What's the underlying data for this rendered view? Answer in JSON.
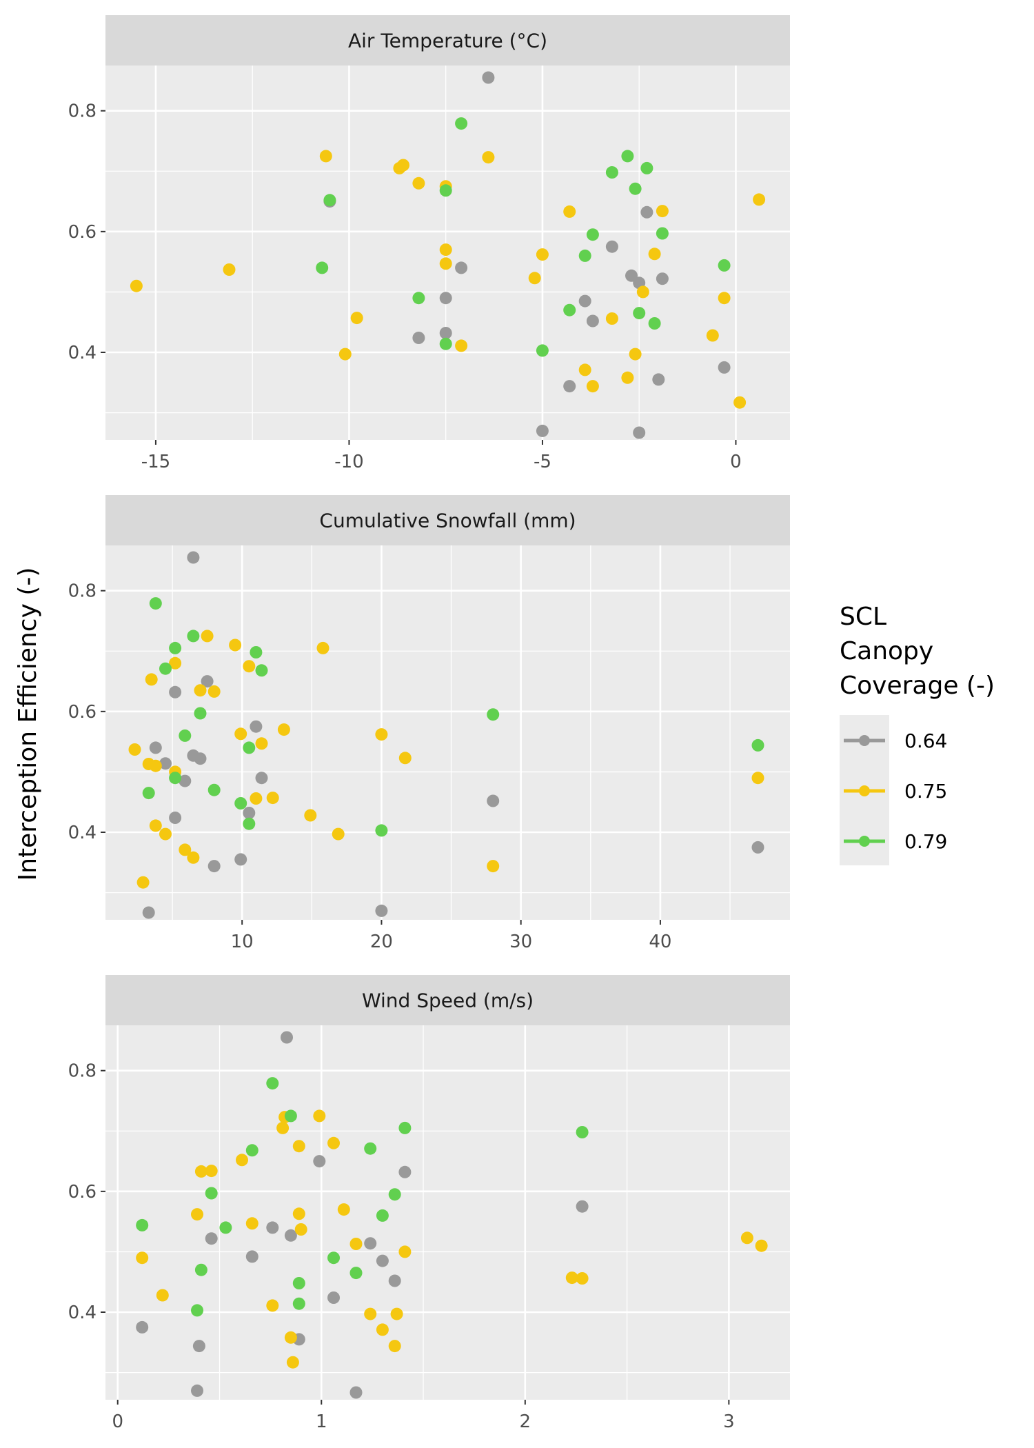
{
  "chart_data": {
    "type": "scatter",
    "ylabel": "Interception Efficiency (-)",
    "ylim": [
      0.255,
      0.875
    ],
    "y_ticks": [
      0.4,
      0.6,
      0.8
    ],
    "y_tick_labels": [
      "0.4",
      "0.6",
      "0.8"
    ],
    "legend": {
      "title_lines": [
        "SCL",
        "Canopy",
        "Coverage (-)"
      ],
      "placement": "right",
      "items": [
        {
          "label": "0.64",
          "color": "#999999"
        },
        {
          "label": "0.75",
          "color": "#F5C710"
        },
        {
          "label": "0.79",
          "color": "#61D04F"
        }
      ]
    },
    "panels": [
      {
        "title": "Air Temperature (°C)",
        "xlim": [
          -16.3,
          1.4
        ],
        "x_ticks": [
          -15,
          -10,
          -5,
          0
        ],
        "x_tick_labels": [
          "-15",
          "-10",
          "-5",
          "0"
        ],
        "points": [
          {
            "x": -6.4,
            "y": 0.855,
            "g": 0
          },
          {
            "x": -10.5,
            "y": 0.65,
            "g": 0
          },
          {
            "x": -7.1,
            "y": 0.54,
            "g": 0
          },
          {
            "x": -7.5,
            "y": 0.49,
            "g": 0
          },
          {
            "x": -8.2,
            "y": 0.424,
            "g": 0
          },
          {
            "x": -7.5,
            "y": 0.432,
            "g": 0
          },
          {
            "x": -3.2,
            "y": 0.575,
            "g": 0
          },
          {
            "x": -2.3,
            "y": 0.632,
            "g": 0
          },
          {
            "x": -2.7,
            "y": 0.527,
            "g": 0
          },
          {
            "x": -2.5,
            "y": 0.515,
            "g": 0
          },
          {
            "x": -1.9,
            "y": 0.522,
            "g": 0
          },
          {
            "x": -3.9,
            "y": 0.485,
            "g": 0
          },
          {
            "x": -3.7,
            "y": 0.452,
            "g": 0
          },
          {
            "x": -4.3,
            "y": 0.344,
            "g": 0
          },
          {
            "x": -2.0,
            "y": 0.355,
            "g": 0
          },
          {
            "x": -0.3,
            "y": 0.375,
            "g": 0
          },
          {
            "x": -5.0,
            "y": 0.27,
            "g": 0
          },
          {
            "x": -2.5,
            "y": 0.267,
            "g": 0
          },
          {
            "x": -15.5,
            "y": 0.51,
            "g": 1
          },
          {
            "x": -13.1,
            "y": 0.537,
            "g": 1
          },
          {
            "x": -10.6,
            "y": 0.725,
            "g": 1
          },
          {
            "x": -8.7,
            "y": 0.705,
            "g": 1
          },
          {
            "x": -8.6,
            "y": 0.71,
            "g": 1
          },
          {
            "x": -8.2,
            "y": 0.68,
            "g": 1
          },
          {
            "x": -7.5,
            "y": 0.675,
            "g": 1
          },
          {
            "x": -6.4,
            "y": 0.723,
            "g": 1
          },
          {
            "x": -7.5,
            "y": 0.57,
            "g": 1
          },
          {
            "x": -7.5,
            "y": 0.547,
            "g": 1
          },
          {
            "x": -9.8,
            "y": 0.457,
            "g": 1
          },
          {
            "x": -10.1,
            "y": 0.397,
            "g": 1
          },
          {
            "x": -7.1,
            "y": 0.411,
            "g": 1
          },
          {
            "x": -5.0,
            "y": 0.562,
            "g": 1
          },
          {
            "x": -5.2,
            "y": 0.523,
            "g": 1
          },
          {
            "x": -4.3,
            "y": 0.633,
            "g": 1
          },
          {
            "x": -3.2,
            "y": 0.456,
            "g": 1
          },
          {
            "x": -3.9,
            "y": 0.371,
            "g": 1
          },
          {
            "x": -3.7,
            "y": 0.344,
            "g": 1
          },
          {
            "x": -2.8,
            "y": 0.358,
            "g": 1
          },
          {
            "x": -2.6,
            "y": 0.397,
            "g": 1
          },
          {
            "x": -2.4,
            "y": 0.5,
            "g": 1
          },
          {
            "x": -2.1,
            "y": 0.563,
            "g": 1
          },
          {
            "x": -1.9,
            "y": 0.634,
            "g": 1
          },
          {
            "x": -0.6,
            "y": 0.428,
            "g": 1
          },
          {
            "x": -0.3,
            "y": 0.49,
            "g": 1
          },
          {
            "x": 0.1,
            "y": 0.317,
            "g": 1
          },
          {
            "x": 0.6,
            "y": 0.653,
            "g": 1
          },
          {
            "x": -10.5,
            "y": 0.652,
            "g": 2
          },
          {
            "x": -10.7,
            "y": 0.54,
            "g": 2
          },
          {
            "x": -8.2,
            "y": 0.49,
            "g": 2
          },
          {
            "x": -7.5,
            "y": 0.668,
            "g": 2
          },
          {
            "x": -7.5,
            "y": 0.414,
            "g": 2
          },
          {
            "x": -7.1,
            "y": 0.779,
            "g": 2
          },
          {
            "x": -5.0,
            "y": 0.403,
            "g": 2
          },
          {
            "x": -4.3,
            "y": 0.47,
            "g": 2
          },
          {
            "x": -3.9,
            "y": 0.56,
            "g": 2
          },
          {
            "x": -3.7,
            "y": 0.595,
            "g": 2
          },
          {
            "x": -3.2,
            "y": 0.698,
            "g": 2
          },
          {
            "x": -2.8,
            "y": 0.725,
            "g": 2
          },
          {
            "x": -2.6,
            "y": 0.671,
            "g": 2
          },
          {
            "x": -2.5,
            "y": 0.465,
            "g": 2
          },
          {
            "x": -2.3,
            "y": 0.705,
            "g": 2
          },
          {
            "x": -2.1,
            "y": 0.448,
            "g": 2
          },
          {
            "x": -1.9,
            "y": 0.597,
            "g": 2
          },
          {
            "x": -0.3,
            "y": 0.544,
            "g": 2
          }
        ]
      },
      {
        "title": "Cumulative Snowfall (mm)",
        "xlim": [
          0.2,
          49.3
        ],
        "x_ticks": [
          10,
          20,
          30,
          40
        ],
        "x_tick_labels": [
          "10",
          "20",
          "30",
          "40"
        ],
        "points": [
          {
            "x": 6.5,
            "y": 0.855,
            "g": 0
          },
          {
            "x": 7.5,
            "y": 0.65,
            "g": 0
          },
          {
            "x": 5.2,
            "y": 0.632,
            "g": 0
          },
          {
            "x": 11.0,
            "y": 0.575,
            "g": 0
          },
          {
            "x": 3.8,
            "y": 0.54,
            "g": 0
          },
          {
            "x": 6.5,
            "y": 0.527,
            "g": 0
          },
          {
            "x": 4.5,
            "y": 0.514,
            "g": 0
          },
          {
            "x": 7.0,
            "y": 0.522,
            "g": 0
          },
          {
            "x": 5.9,
            "y": 0.485,
            "g": 0
          },
          {
            "x": 11.4,
            "y": 0.49,
            "g": 0
          },
          {
            "x": 5.2,
            "y": 0.424,
            "g": 0
          },
          {
            "x": 10.5,
            "y": 0.432,
            "g": 0
          },
          {
            "x": 28.0,
            "y": 0.452,
            "g": 0
          },
          {
            "x": 8.0,
            "y": 0.344,
            "g": 0
          },
          {
            "x": 9.9,
            "y": 0.355,
            "g": 0
          },
          {
            "x": 47.0,
            "y": 0.375,
            "g": 0
          },
          {
            "x": 3.3,
            "y": 0.267,
            "g": 0
          },
          {
            "x": 20.0,
            "y": 0.27,
            "g": 0
          },
          {
            "x": 7.5,
            "y": 0.725,
            "g": 1
          },
          {
            "x": 9.5,
            "y": 0.71,
            "g": 1
          },
          {
            "x": 15.8,
            "y": 0.705,
            "g": 1
          },
          {
            "x": 5.2,
            "y": 0.68,
            "g": 1
          },
          {
            "x": 10.5,
            "y": 0.675,
            "g": 1
          },
          {
            "x": 3.5,
            "y": 0.653,
            "g": 1
          },
          {
            "x": 7.0,
            "y": 0.635,
            "g": 1
          },
          {
            "x": 8.0,
            "y": 0.633,
            "g": 1
          },
          {
            "x": 9.9,
            "y": 0.563,
            "g": 1
          },
          {
            "x": 13.0,
            "y": 0.57,
            "g": 1
          },
          {
            "x": 20.0,
            "y": 0.562,
            "g": 1
          },
          {
            "x": 2.3,
            "y": 0.537,
            "g": 1
          },
          {
            "x": 11.4,
            "y": 0.547,
            "g": 1
          },
          {
            "x": 21.7,
            "y": 0.523,
            "g": 1
          },
          {
            "x": 3.3,
            "y": 0.513,
            "g": 1
          },
          {
            "x": 3.8,
            "y": 0.51,
            "g": 1
          },
          {
            "x": 5.2,
            "y": 0.5,
            "g": 1
          },
          {
            "x": 47.0,
            "y": 0.49,
            "g": 1
          },
          {
            "x": 11.0,
            "y": 0.456,
            "g": 1
          },
          {
            "x": 12.2,
            "y": 0.457,
            "g": 1
          },
          {
            "x": 14.9,
            "y": 0.428,
            "g": 1
          },
          {
            "x": 3.8,
            "y": 0.411,
            "g": 1
          },
          {
            "x": 4.5,
            "y": 0.397,
            "g": 1
          },
          {
            "x": 16.9,
            "y": 0.397,
            "g": 1
          },
          {
            "x": 5.9,
            "y": 0.371,
            "g": 1
          },
          {
            "x": 6.5,
            "y": 0.358,
            "g": 1
          },
          {
            "x": 28.0,
            "y": 0.344,
            "g": 1
          },
          {
            "x": 2.9,
            "y": 0.317,
            "g": 1
          },
          {
            "x": 3.8,
            "y": 0.779,
            "g": 2
          },
          {
            "x": 6.5,
            "y": 0.725,
            "g": 2
          },
          {
            "x": 5.2,
            "y": 0.705,
            "g": 2
          },
          {
            "x": 11.0,
            "y": 0.698,
            "g": 2
          },
          {
            "x": 4.5,
            "y": 0.671,
            "g": 2
          },
          {
            "x": 11.4,
            "y": 0.668,
            "g": 2
          },
          {
            "x": 7.0,
            "y": 0.597,
            "g": 2
          },
          {
            "x": 28.0,
            "y": 0.595,
            "g": 2
          },
          {
            "x": 5.9,
            "y": 0.56,
            "g": 2
          },
          {
            "x": 10.5,
            "y": 0.54,
            "g": 2
          },
          {
            "x": 47.0,
            "y": 0.544,
            "g": 2
          },
          {
            "x": 5.2,
            "y": 0.49,
            "g": 2
          },
          {
            "x": 8.0,
            "y": 0.47,
            "g": 2
          },
          {
            "x": 3.3,
            "y": 0.465,
            "g": 2
          },
          {
            "x": 9.9,
            "y": 0.448,
            "g": 2
          },
          {
            "x": 10.5,
            "y": 0.414,
            "g": 2
          },
          {
            "x": 20.0,
            "y": 0.403,
            "g": 2
          }
        ]
      },
      {
        "title": "Wind Speed (m/s)",
        "xlim": [
          -0.06,
          3.3
        ],
        "x_ticks": [
          0,
          1,
          2,
          3
        ],
        "x_tick_labels": [
          "0",
          "1",
          "2",
          "3"
        ],
        "points": [
          {
            "x": 0.83,
            "y": 0.855,
            "g": 0
          },
          {
            "x": 0.99,
            "y": 0.65,
            "g": 0
          },
          {
            "x": 1.41,
            "y": 0.632,
            "g": 0
          },
          {
            "x": 2.28,
            "y": 0.575,
            "g": 0
          },
          {
            "x": 0.76,
            "y": 0.54,
            "g": 0
          },
          {
            "x": 0.85,
            "y": 0.527,
            "g": 0
          },
          {
            "x": 0.46,
            "y": 0.522,
            "g": 0
          },
          {
            "x": 1.24,
            "y": 0.514,
            "g": 0
          },
          {
            "x": 0.66,
            "y": 0.492,
            "g": 0
          },
          {
            "x": 1.3,
            "y": 0.485,
            "g": 0
          },
          {
            "x": 1.36,
            "y": 0.452,
            "g": 0
          },
          {
            "x": 1.06,
            "y": 0.424,
            "g": 0
          },
          {
            "x": 0.12,
            "y": 0.375,
            "g": 0
          },
          {
            "x": 0.4,
            "y": 0.344,
            "g": 0
          },
          {
            "x": 0.89,
            "y": 0.355,
            "g": 0
          },
          {
            "x": 0.39,
            "y": 0.27,
            "g": 0
          },
          {
            "x": 1.17,
            "y": 0.267,
            "g": 0
          },
          {
            "x": 0.82,
            "y": 0.723,
            "g": 1
          },
          {
            "x": 0.99,
            "y": 0.725,
            "g": 1
          },
          {
            "x": 0.81,
            "y": 0.705,
            "g": 1
          },
          {
            "x": 1.06,
            "y": 0.68,
            "g": 1
          },
          {
            "x": 0.89,
            "y": 0.675,
            "g": 1
          },
          {
            "x": 0.61,
            "y": 0.652,
            "g": 1
          },
          {
            "x": 0.41,
            "y": 0.633,
            "g": 1
          },
          {
            "x": 0.46,
            "y": 0.634,
            "g": 1
          },
          {
            "x": 1.11,
            "y": 0.57,
            "g": 1
          },
          {
            "x": 0.39,
            "y": 0.562,
            "g": 1
          },
          {
            "x": 0.89,
            "y": 0.563,
            "g": 1
          },
          {
            "x": 0.66,
            "y": 0.547,
            "g": 1
          },
          {
            "x": 0.9,
            "y": 0.537,
            "g": 1
          },
          {
            "x": 1.17,
            "y": 0.513,
            "g": 1
          },
          {
            "x": 3.09,
            "y": 0.523,
            "g": 1
          },
          {
            "x": 3.16,
            "y": 0.51,
            "g": 1
          },
          {
            "x": 1.41,
            "y": 0.5,
            "g": 1
          },
          {
            "x": 0.12,
            "y": 0.49,
            "g": 1
          },
          {
            "x": 2.23,
            "y": 0.457,
            "g": 1
          },
          {
            "x": 2.28,
            "y": 0.456,
            "g": 1
          },
          {
            "x": 0.22,
            "y": 0.428,
            "g": 1
          },
          {
            "x": 0.76,
            "y": 0.411,
            "g": 1
          },
          {
            "x": 1.24,
            "y": 0.397,
            "g": 1
          },
          {
            "x": 1.37,
            "y": 0.397,
            "g": 1
          },
          {
            "x": 1.3,
            "y": 0.371,
            "g": 1
          },
          {
            "x": 0.85,
            "y": 0.358,
            "g": 1
          },
          {
            "x": 1.36,
            "y": 0.344,
            "g": 1
          },
          {
            "x": 0.86,
            "y": 0.317,
            "g": 1
          },
          {
            "x": 0.76,
            "y": 0.779,
            "g": 2
          },
          {
            "x": 0.85,
            "y": 0.725,
            "g": 2
          },
          {
            "x": 2.28,
            "y": 0.698,
            "g": 2
          },
          {
            "x": 1.41,
            "y": 0.705,
            "g": 2
          },
          {
            "x": 1.24,
            "y": 0.671,
            "g": 2
          },
          {
            "x": 0.66,
            "y": 0.668,
            "g": 2
          },
          {
            "x": 0.46,
            "y": 0.597,
            "g": 2
          },
          {
            "x": 1.36,
            "y": 0.595,
            "g": 2
          },
          {
            "x": 1.3,
            "y": 0.56,
            "g": 2
          },
          {
            "x": 0.12,
            "y": 0.544,
            "g": 2
          },
          {
            "x": 0.53,
            "y": 0.54,
            "g": 2
          },
          {
            "x": 1.06,
            "y": 0.49,
            "g": 2
          },
          {
            "x": 0.41,
            "y": 0.47,
            "g": 2
          },
          {
            "x": 1.17,
            "y": 0.465,
            "g": 2
          },
          {
            "x": 0.89,
            "y": 0.448,
            "g": 2
          },
          {
            "x": 0.89,
            "y": 0.414,
            "g": 2
          },
          {
            "x": 0.39,
            "y": 0.403,
            "g": 2
          }
        ]
      }
    ]
  }
}
